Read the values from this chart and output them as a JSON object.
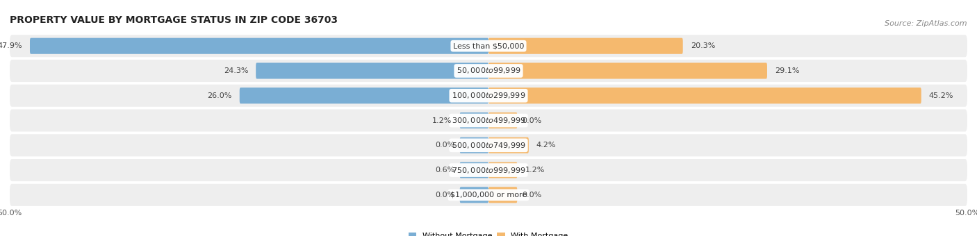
{
  "title": "PROPERTY VALUE BY MORTGAGE STATUS IN ZIP CODE 36703",
  "source": "Source: ZipAtlas.com",
  "categories": [
    "Less than $50,000",
    "$50,000 to $99,999",
    "$100,000 to $299,999",
    "$300,000 to $499,999",
    "$500,000 to $749,999",
    "$750,000 to $999,999",
    "$1,000,000 or more"
  ],
  "without_mortgage": [
    47.9,
    24.3,
    26.0,
    1.2,
    0.0,
    0.6,
    0.0
  ],
  "with_mortgage": [
    20.3,
    29.1,
    45.2,
    0.0,
    4.2,
    1.2,
    0.0
  ],
  "color_without": "#7aaed4",
  "color_with": "#f5b96e",
  "bg_row_color": "#eeeeee",
  "axis_max": 50.0,
  "min_bar_stub": 3.0,
  "title_fontsize": 10,
  "source_fontsize": 8,
  "label_fontsize": 8,
  "tick_fontsize": 8,
  "category_fontsize": 8
}
